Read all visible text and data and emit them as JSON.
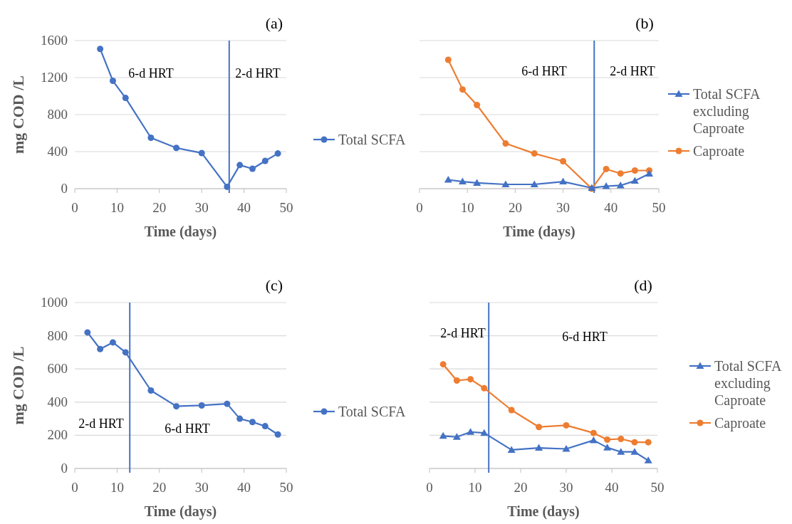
{
  "chart_data": [
    {
      "type": "line",
      "title": "(a)",
      "xlabel": "Time (days)",
      "ylabel": "mg COD /L",
      "x": [
        6,
        9,
        12,
        18,
        24,
        30,
        36,
        39,
        42,
        45,
        48
      ],
      "xlim": [
        0,
        50
      ],
      "xticks": [
        0,
        10,
        20,
        30,
        40,
        50
      ],
      "ylim": [
        0,
        1600
      ],
      "yticks": [
        0,
        400,
        800,
        1200,
        1600
      ],
      "grid": "y",
      "legend": "right",
      "line_style": "solid",
      "series": [
        {
          "name": "Total SCFA",
          "color": "#4472c4",
          "marker": "circle",
          "values": [
            1510,
            1165,
            980,
            550,
            440,
            385,
            20,
            255,
            215,
            300,
            380
          ]
        }
      ],
      "ref_lines": [
        {
          "axis": "x",
          "value": 36.5,
          "color": "#4472c4"
        }
      ],
      "annotations": [
        "6-d HRT",
        "2-d HRT"
      ]
    },
    {
      "type": "line",
      "title": "(b)",
      "xlabel": "Time (days)",
      "x": [
        6,
        9,
        12,
        18,
        24,
        30,
        36,
        39,
        42,
        45,
        48
      ],
      "xlim": [
        0,
        50
      ],
      "xticks": [
        0,
        10,
        20,
        30,
        40,
        50
      ],
      "tick_labels": "x",
      "ylim": [
        0,
        1600
      ],
      "yticks": [
        0,
        400,
        800,
        1200,
        1600
      ],
      "grid": "y",
      "legend": "right",
      "line_style": "solid",
      "series": [
        {
          "name": "Total SCFA excluding Caproate",
          "color": "#4472c4",
          "marker": "triangle",
          "values": [
            96,
            76,
            62,
            46,
            46,
            76,
            8,
            27,
            35,
            84,
            162
          ]
        },
        {
          "name": "Caproate",
          "color": "#ed7d31",
          "marker": "circle",
          "values": [
            1392,
            1072,
            904,
            488,
            380,
            296,
            0,
            212,
            164,
            196,
            196
          ]
        }
      ],
      "ref_lines": [
        {
          "axis": "x",
          "value": 36.5,
          "color": "#4472c4"
        }
      ],
      "annotations": [
        "6-d HRT",
        "2-d HRT"
      ]
    },
    {
      "type": "line",
      "title": "(c)",
      "xlabel": "Time (days)",
      "ylabel": "mg COD /L",
      "x": [
        3,
        6,
        9,
        12,
        18,
        24,
        30,
        36,
        39,
        42,
        45,
        48
      ],
      "xlim": [
        0,
        50
      ],
      "xticks": [
        0,
        10,
        20,
        30,
        40,
        50
      ],
      "ylim": [
        0,
        1000
      ],
      "yticks": [
        0,
        200,
        400,
        600,
        800,
        1000
      ],
      "grid": "y",
      "legend": "right",
      "line_style": "solid",
      "series": [
        {
          "name": "Total SCFA",
          "color": "#4472c4",
          "marker": "circle",
          "values": [
            820,
            720,
            760,
            700,
            470,
            375,
            380,
            390,
            300,
            280,
            255,
            205
          ]
        }
      ],
      "ref_lines": [
        {
          "axis": "x",
          "value": 13,
          "color": "#4472c4"
        }
      ],
      "annotations": [
        "2-d HRT",
        "6-d HRT"
      ]
    },
    {
      "type": "line",
      "title": "(d)",
      "xlabel": "Time (days)",
      "x": [
        3,
        6,
        9,
        12,
        18,
        24,
        30,
        36,
        39,
        42,
        45,
        48
      ],
      "xlim": [
        0,
        50
      ],
      "xticks": [
        0,
        10,
        20,
        30,
        40,
        50
      ],
      "tick_labels": "x",
      "ylim": [
        0,
        1000
      ],
      "yticks": [
        0,
        200,
        400,
        600,
        800,
        1000
      ],
      "grid": "y",
      "legend": "right",
      "line_style": "solid",
      "series": [
        {
          "name": "Total SCFA excluding Caproate",
          "color": "#4472c4",
          "marker": "triangle",
          "values": [
            196,
            190,
            220,
            214,
            112,
            124,
            118,
            170,
            126,
            100,
            100,
            48
          ]
        },
        {
          "name": "Caproate",
          "color": "#ed7d31",
          "marker": "circle",
          "values": [
            628,
            530,
            538,
            484,
            352,
            250,
            260,
            214,
            174,
            178,
            158,
            158
          ]
        }
      ],
      "ref_lines": [
        {
          "axis": "x",
          "value": 13,
          "color": "#4472c4"
        }
      ],
      "annotations": [
        "2-d HRT",
        "6-d HRT"
      ]
    }
  ]
}
